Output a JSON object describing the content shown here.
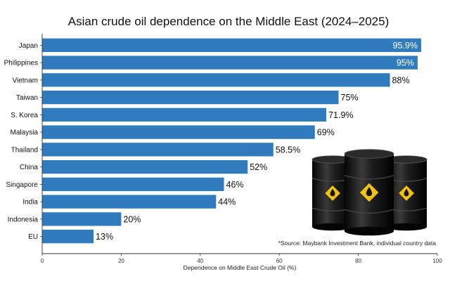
{
  "chart_data": {
    "type": "bar",
    "orientation": "horizontal",
    "title": "Asian crude oil dependence on the Middle East (2024–2025)",
    "xlabel": "Dependence on Middle East Crude Oil (%)",
    "ylabel": "",
    "categories": [
      "Japan",
      "Philippines",
      "Vietnam",
      "Taiwan",
      "S. Korea",
      "Malaysia",
      "Thailand",
      "China",
      "Singapore",
      "India",
      "Indonesia",
      "EU"
    ],
    "values": [
      95.9,
      95,
      88,
      75,
      71.9,
      69,
      58.5,
      52,
      46,
      44,
      20,
      13
    ],
    "value_labels": [
      "95.9%",
      "95%",
      "88%",
      "75%",
      "71.9%",
      "69%",
      "58.5%",
      "52%",
      "46%",
      "44%",
      "20%",
      "13%"
    ],
    "xlim": [
      0,
      100
    ],
    "xticks": [
      0,
      20,
      40,
      60,
      80,
      100
    ],
    "grid": false,
    "legend": "none",
    "bar_color": "#2f7bbd",
    "annotation": "*Source: Maybank Investment Bank, individual country data"
  },
  "decoration": {
    "image": "oil-barrels-icon",
    "barrel_color": "#1b1b1b",
    "symbol_color": "#f2c10f"
  }
}
